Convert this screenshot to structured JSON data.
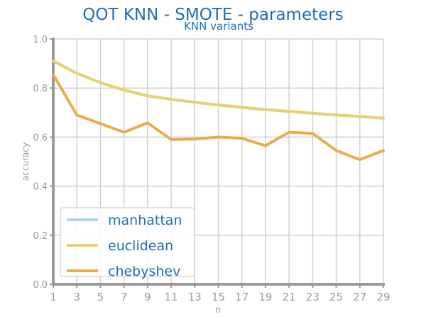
{
  "chart_data": {
    "type": "line",
    "title": "QOT KNN - SMOTE - parameters",
    "subtitle": "KNN variants",
    "xlabel": "n",
    "ylabel": "accuracy",
    "x": [
      1,
      3,
      5,
      7,
      9,
      11,
      13,
      15,
      17,
      19,
      21,
      23,
      25,
      27,
      29
    ],
    "xticks": [
      "1",
      "3",
      "5",
      "7",
      "9",
      "11",
      "13",
      "15",
      "17",
      "19",
      "21",
      "23",
      "25",
      "27",
      "29"
    ],
    "yticks": [
      "0.0",
      "0.2",
      "0.4",
      "0.6",
      "0.8",
      "1.0"
    ],
    "xlim": [
      1,
      29
    ],
    "ylim": [
      0,
      1
    ],
    "grid": true,
    "legend_position": "bottom-left",
    "series": [
      {
        "name": "manhattan",
        "color": "#add8e6",
        "values": [
          0.91,
          0.86,
          0.822,
          0.792,
          0.768,
          0.754,
          0.742,
          0.731,
          0.721,
          0.712,
          0.705,
          0.697,
          0.69,
          0.684,
          0.677
        ]
      },
      {
        "name": "euclidean",
        "color": "#e8d170",
        "values": [
          0.91,
          0.86,
          0.822,
          0.792,
          0.768,
          0.754,
          0.742,
          0.731,
          0.721,
          0.712,
          0.705,
          0.697,
          0.69,
          0.684,
          0.677
        ]
      },
      {
        "name": "chebyshev",
        "color": "#e8ad4e",
        "values": [
          0.855,
          0.69,
          0.655,
          0.62,
          0.658,
          0.59,
          0.592,
          0.6,
          0.595,
          0.565,
          0.62,
          0.615,
          0.545,
          0.508,
          0.545
        ]
      }
    ]
  }
}
